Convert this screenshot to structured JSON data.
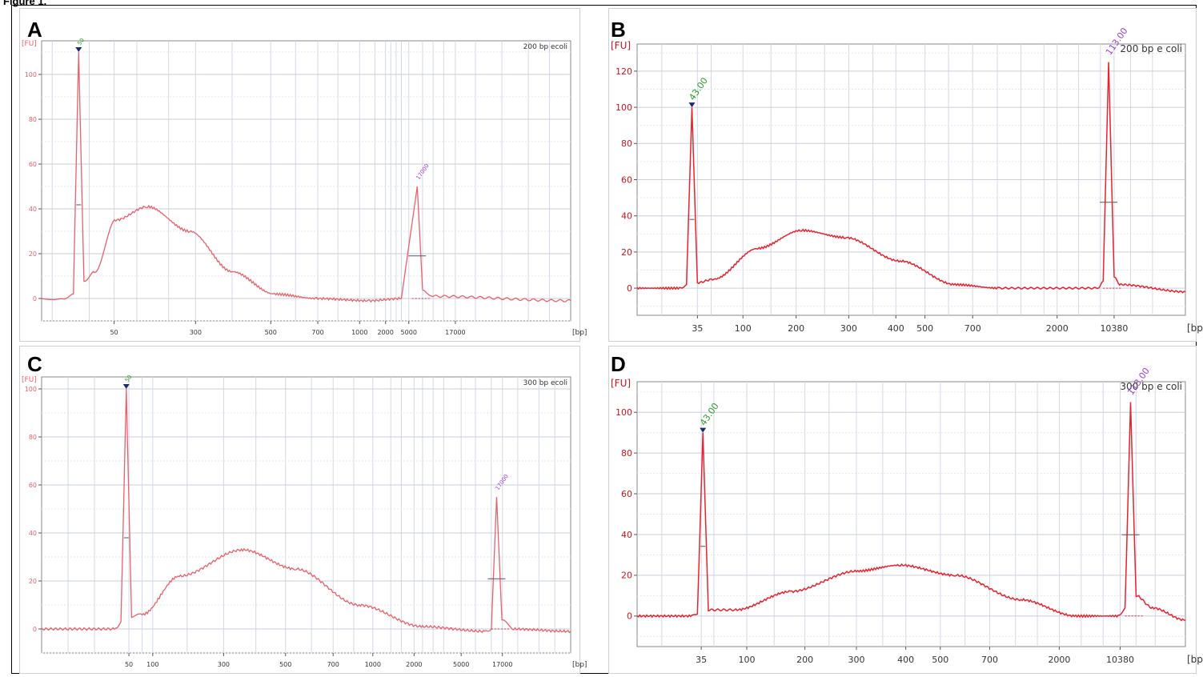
{
  "figure": {
    "header": "Figure 1."
  },
  "chart_data": [
    {
      "panel": "A",
      "type": "line",
      "title": "200 bp ecoli",
      "ylabel": "[FU]",
      "xlabel": "[bp]",
      "ylim": [
        -10,
        115
      ],
      "yticks": [
        "0",
        "20",
        "40",
        "60",
        "80",
        "100"
      ],
      "xticks": [
        "50",
        "300",
        "500",
        "700",
        "1000",
        "2000",
        "5000",
        "17000"
      ],
      "peak_labels": [
        "50",
        "17000"
      ],
      "series": [
        {
          "values_description_points": [
            [
              0,
              0
            ],
            [
              4,
              0
            ],
            [
              6,
              2
            ],
            [
              7,
              110
            ],
            [
              8,
              8
            ],
            [
              10,
              12
            ],
            [
              14,
              35
            ],
            [
              20,
              41
            ],
            [
              28,
              30
            ],
            [
              36,
              12
            ],
            [
              44,
              2
            ],
            [
              52,
              0
            ],
            [
              62,
              -1
            ],
            [
              68,
              0
            ],
            [
              71,
              50
            ],
            [
              72,
              4
            ],
            [
              74,
              1
            ],
            [
              100,
              -1
            ]
          ]
        }
      ],
      "grid": true,
      "line_color": "#e8606b"
    },
    {
      "panel": "B",
      "type": "line",
      "title": "200 bp e coli",
      "ylabel": "[FU]",
      "xlabel": "[bp]",
      "ylim": [
        -15,
        135
      ],
      "yticks": [
        "0",
        "20",
        "40",
        "60",
        "80",
        "100",
        "120"
      ],
      "xticks": [
        "35",
        "100",
        "200",
        "300",
        "400",
        "500",
        "700",
        "2000",
        "10380"
      ],
      "peak_labels": [
        "43.00",
        "113.00"
      ],
      "series": [
        {
          "values_description_points": [
            [
              0,
              0
            ],
            [
              8,
              0
            ],
            [
              9,
              2
            ],
            [
              10,
              100
            ],
            [
              11,
              3
            ],
            [
              14,
              5
            ],
            [
              22,
              22
            ],
            [
              30,
              32
            ],
            [
              38,
              28
            ],
            [
              48,
              15
            ],
            [
              58,
              2
            ],
            [
              66,
              0
            ],
            [
              84,
              0
            ],
            [
              85,
              4
            ],
            [
              86,
              125
            ],
            [
              87,
              6
            ],
            [
              88,
              2
            ],
            [
              100,
              -2
            ]
          ]
        }
      ],
      "grid": true,
      "line_color": "#e8222e"
    },
    {
      "panel": "C",
      "type": "line",
      "title": "300 bp ecoli",
      "ylabel": "[FU]",
      "xlabel": "[bp]",
      "ylim": [
        -10,
        105
      ],
      "yticks": [
        "0",
        "20",
        "40",
        "60",
        "80",
        "100"
      ],
      "xticks": [
        "50",
        "100",
        "300",
        "500",
        "700",
        "1000",
        "2000",
        "5000",
        "17000"
      ],
      "peak_labels": [
        "50",
        "17000"
      ],
      "series": [
        {
          "values_description_points": [
            [
              0,
              0
            ],
            [
              14,
              0
            ],
            [
              15,
              3
            ],
            [
              16,
              100
            ],
            [
              17,
              5
            ],
            [
              19,
              6
            ],
            [
              26,
              22
            ],
            [
              38,
              33
            ],
            [
              48,
              25
            ],
            [
              60,
              10
            ],
            [
              72,
              1
            ],
            [
              84,
              -1
            ],
            [
              85,
              0
            ],
            [
              86,
              55
            ],
            [
              87,
              4
            ],
            [
              89,
              0
            ],
            [
              100,
              -1
            ]
          ]
        }
      ],
      "grid": true,
      "line_color": "#e8606b"
    },
    {
      "panel": "D",
      "type": "line",
      "title": "300 bp e coli",
      "ylabel": "[FU]",
      "xlabel": "[bp]",
      "ylim": [
        -15,
        115
      ],
      "yticks": [
        "0",
        "20",
        "40",
        "60",
        "80",
        "100"
      ],
      "xticks": [
        "35",
        "100",
        "200",
        "300",
        "400",
        "500",
        "700",
        "2000",
        "10380"
      ],
      "peak_labels": [
        "43.00",
        "113.00"
      ],
      "series": [
        {
          "values_description_points": [
            [
              0,
              0
            ],
            [
              10,
              0
            ],
            [
              11,
              1
            ],
            [
              12,
              90
            ],
            [
              13,
              3
            ],
            [
              18,
              3
            ],
            [
              28,
              12
            ],
            [
              40,
              22
            ],
            [
              48,
              25
            ],
            [
              58,
              20
            ],
            [
              70,
              8
            ],
            [
              80,
              0
            ],
            [
              88,
              0
            ],
            [
              89,
              4
            ],
            [
              90,
              105
            ],
            [
              91,
              10
            ],
            [
              94,
              4
            ],
            [
              100,
              -2
            ]
          ]
        }
      ],
      "grid": true,
      "line_color": "#e8222e"
    }
  ]
}
